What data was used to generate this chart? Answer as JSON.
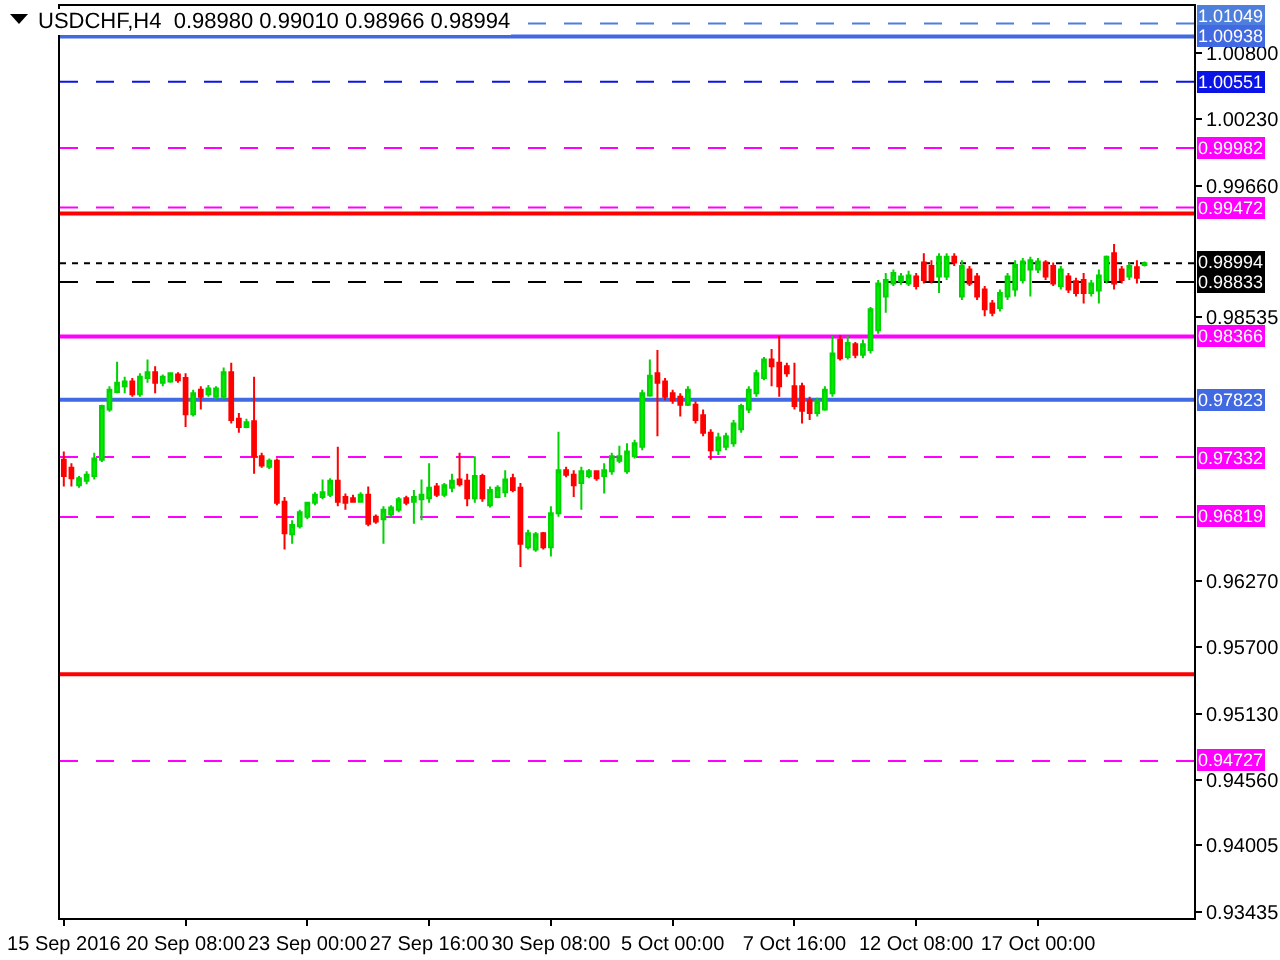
{
  "chart_data": {
    "type": "candlestick",
    "title": "USDCHF,H4  0.98980 0.99010 0.98966 0.98994",
    "categories": [
      "15 Sep 2016",
      null,
      null,
      null,
      null,
      null,
      null,
      null,
      null,
      null,
      null,
      null,
      null,
      null,
      null,
      null,
      "20 Sep 08:00",
      null,
      null,
      null,
      null,
      null,
      null,
      null,
      null,
      null,
      null,
      null,
      null,
      null,
      null,
      null,
      "23 Sep 00:00",
      null,
      null,
      null,
      null,
      null,
      null,
      null,
      null,
      null,
      null,
      null,
      null,
      null,
      null,
      null,
      "27 Sep 16:00",
      null,
      null,
      null,
      null,
      null,
      null,
      null,
      null,
      null,
      null,
      null,
      null,
      null,
      null,
      null,
      "30 Sep 08:00",
      null,
      null,
      null,
      null,
      null,
      null,
      null,
      null,
      null,
      null,
      null,
      null,
      null,
      null,
      null,
      "5 Oct 00:00",
      null,
      null,
      null,
      null,
      null,
      null,
      null,
      null,
      null,
      null,
      null,
      null,
      null,
      null,
      null,
      "7 Oct 16:00",
      null,
      null,
      null,
      null,
      null,
      null,
      null,
      null,
      null,
      null,
      null,
      null,
      null,
      null,
      null,
      "12 Oct 08:00",
      null,
      null,
      null,
      null,
      null,
      null,
      null,
      null,
      null,
      null,
      null,
      null,
      null,
      null,
      null,
      "17 Oct 00:00",
      null,
      null,
      null,
      null,
      null,
      null,
      null,
      null,
      null,
      null,
      null,
      null,
      null,
      null
    ],
    "ohlc": [
      [
        0.9731,
        0.9738,
        0.9708,
        0.9717
      ],
      [
        0.9724,
        0.9728,
        0.9708,
        0.9715
      ],
      [
        0.9709,
        0.9717,
        0.9707,
        0.9715
      ],
      [
        0.9713,
        0.9721,
        0.971,
        0.9718
      ],
      [
        0.9717,
        0.9737,
        0.9714,
        0.9732
      ],
      [
        0.9731,
        0.9778,
        0.9729,
        0.9777
      ],
      [
        0.9774,
        0.9794,
        0.9772,
        0.9791
      ],
      [
        0.9789,
        0.9815,
        0.9788,
        0.9797
      ],
      [
        0.9794,
        0.9802,
        0.9788,
        0.9798
      ],
      [
        0.9798,
        0.9801,
        0.9785,
        0.9787
      ],
      [
        0.9787,
        0.9805,
        0.9785,
        0.9802
      ],
      [
        0.9801,
        0.9817,
        0.9797,
        0.9806
      ],
      [
        0.9806,
        0.9811,
        0.9788,
        0.9797
      ],
      [
        0.9797,
        0.9804,
        0.9794,
        0.9802
      ],
      [
        0.9798,
        0.9806,
        0.9797,
        0.9805
      ],
      [
        0.9804,
        0.9806,
        0.9797,
        0.9799
      ],
      [
        0.9801,
        0.9805,
        0.9759,
        0.977
      ],
      [
        0.977,
        0.9791,
        0.9768,
        0.9788
      ],
      [
        0.9791,
        0.9794,
        0.9774,
        0.9785
      ],
      [
        0.9787,
        0.9795,
        0.9785,
        0.9792
      ],
      [
        0.9785,
        0.9794,
        0.9783,
        0.9792
      ],
      [
        0.9785,
        0.981,
        0.9783,
        0.9806
      ],
      [
        0.9806,
        0.9814,
        0.9762,
        0.9765
      ],
      [
        0.9766,
        0.9771,
        0.9754,
        0.9759
      ],
      [
        0.9759,
        0.9766,
        0.9758,
        0.9763
      ],
      [
        0.9764,
        0.9802,
        0.9719,
        0.9734
      ],
      [
        0.9734,
        0.9737,
        0.9724,
        0.9726
      ],
      [
        0.9725,
        0.9732,
        0.9723,
        0.973
      ],
      [
        0.973,
        0.9732,
        0.9692,
        0.9694
      ],
      [
        0.9695,
        0.9699,
        0.9654,
        0.9668
      ],
      [
        0.9667,
        0.9679,
        0.9659,
        0.9675
      ],
      [
        0.9674,
        0.9688,
        0.9672,
        0.9686
      ],
      [
        0.9682,
        0.9695,
        0.968,
        0.9694
      ],
      [
        0.9694,
        0.9703,
        0.9692,
        0.9701
      ],
      [
        0.9699,
        0.9714,
        0.9697,
        0.9703
      ],
      [
        0.9701,
        0.9715,
        0.9699,
        0.9713
      ],
      [
        0.9713,
        0.9742,
        0.9691,
        0.9695
      ],
      [
        0.9699,
        0.9702,
        0.9688,
        0.9694
      ],
      [
        0.9698,
        0.9701,
        0.9694,
        0.9695
      ],
      [
        0.9695,
        0.9703,
        0.9694,
        0.9701
      ],
      [
        0.9701,
        0.9708,
        0.9674,
        0.9676
      ],
      [
        0.9682,
        0.9684,
        0.9676,
        0.9678
      ],
      [
        0.968,
        0.9691,
        0.9659,
        0.9688
      ],
      [
        0.9684,
        0.9692,
        0.9682,
        0.969
      ],
      [
        0.9688,
        0.9699,
        0.9686,
        0.9697
      ],
      [
        0.9698,
        0.97,
        0.9692,
        0.9694
      ],
      [
        0.9695,
        0.9705,
        0.9676,
        0.9699
      ],
      [
        0.9697,
        0.9714,
        0.9679,
        0.9701
      ],
      [
        0.9698,
        0.9728,
        0.9694,
        0.9707
      ],
      [
        0.9708,
        0.9711,
        0.9699,
        0.9701
      ],
      [
        0.9701,
        0.9711,
        0.9699,
        0.9709
      ],
      [
        0.9707,
        0.9719,
        0.9703,
        0.9713
      ],
      [
        0.9714,
        0.9737,
        0.9708,
        0.971
      ],
      [
        0.9713,
        0.9719,
        0.9691,
        0.9698
      ],
      [
        0.9698,
        0.9734,
        0.9694,
        0.9717
      ],
      [
        0.9717,
        0.9719,
        0.9695,
        0.9698
      ],
      [
        0.9692,
        0.9708,
        0.969,
        0.9705
      ],
      [
        0.9699,
        0.9709,
        0.9698,
        0.9707
      ],
      [
        0.9703,
        0.9722,
        0.9699,
        0.9714
      ],
      [
        0.9715,
        0.9719,
        0.9703,
        0.9705
      ],
      [
        0.9707,
        0.9711,
        0.9639,
        0.9659
      ],
      [
        0.9656,
        0.9671,
        0.9654,
        0.9668
      ],
      [
        0.9654,
        0.9669,
        0.9652,
        0.9667
      ],
      [
        0.9668,
        0.9669,
        0.9654,
        0.9656
      ],
      [
        0.9656,
        0.9691,
        0.9648,
        0.9685
      ],
      [
        0.9685,
        0.9755,
        0.9682,
        0.9722
      ],
      [
        0.9722,
        0.9725,
        0.9716,
        0.9718
      ],
      [
        0.9718,
        0.9722,
        0.9699,
        0.9709
      ],
      [
        0.9711,
        0.9725,
        0.9688,
        0.9721
      ],
      [
        0.9717,
        0.9723,
        0.9715,
        0.9721
      ],
      [
        0.9721,
        0.9722,
        0.9713,
        0.9715
      ],
      [
        0.9717,
        0.9728,
        0.9702,
        0.9722
      ],
      [
        0.9721,
        0.9737,
        0.9718,
        0.9734
      ],
      [
        0.973,
        0.9743,
        0.9728,
        0.9734
      ],
      [
        0.9721,
        0.9745,
        0.9719,
        0.9738
      ],
      [
        0.9734,
        0.9748,
        0.9732,
        0.9745
      ],
      [
        0.9742,
        0.9791,
        0.9739,
        0.9788
      ],
      [
        0.9786,
        0.9817,
        0.9785,
        0.9803
      ],
      [
        0.9805,
        0.9825,
        0.9751,
        0.9797
      ],
      [
        0.9798,
        0.9801,
        0.9782,
        0.9785
      ],
      [
        0.9788,
        0.9791,
        0.9779,
        0.9782
      ],
      [
        0.9785,
        0.9788,
        0.9768,
        0.9778
      ],
      [
        0.9778,
        0.9794,
        0.9777,
        0.9791
      ],
      [
        0.9778,
        0.9781,
        0.9762,
        0.9765
      ],
      [
        0.9769,
        0.9774,
        0.9751,
        0.9754
      ],
      [
        0.9754,
        0.9757,
        0.9731,
        0.9739
      ],
      [
        0.9739,
        0.9754,
        0.9735,
        0.975
      ],
      [
        0.9742,
        0.9754,
        0.9739,
        0.9751
      ],
      [
        0.9745,
        0.9765,
        0.9742,
        0.9762
      ],
      [
        0.9757,
        0.9779,
        0.9754,
        0.9777
      ],
      [
        0.9774,
        0.9794,
        0.9771,
        0.9791
      ],
      [
        0.9788,
        0.9808,
        0.9785,
        0.9805
      ],
      [
        0.9801,
        0.9819,
        0.9799,
        0.9817
      ],
      [
        0.9817,
        0.9826,
        0.9794,
        0.9811
      ],
      [
        0.9814,
        0.9837,
        0.9785,
        0.9794
      ],
      [
        0.9811,
        0.9814,
        0.9802,
        0.9805
      ],
      [
        0.9794,
        0.9814,
        0.9774,
        0.9777
      ],
      [
        0.9794,
        0.9797,
        0.9762,
        0.9773
      ],
      [
        0.9782,
        0.9785,
        0.9765,
        0.9771
      ],
      [
        0.9771,
        0.9784,
        0.9768,
        0.9781
      ],
      [
        0.9774,
        0.9794,
        0.9773,
        0.9791
      ],
      [
        0.9788,
        0.9837,
        0.9785,
        0.9822
      ],
      [
        0.9834,
        0.9838,
        0.9816,
        0.9818
      ],
      [
        0.9819,
        0.9837,
        0.9817,
        0.9831
      ],
      [
        0.983,
        0.9832,
        0.9818,
        0.9821
      ],
      [
        0.9821,
        0.9834,
        0.9818,
        0.983
      ],
      [
        0.9825,
        0.9862,
        0.9822,
        0.986
      ],
      [
        0.9842,
        0.9885,
        0.9839,
        0.9882
      ],
      [
        0.9871,
        0.9891,
        0.9857,
        0.9885
      ],
      [
        0.9882,
        0.9894,
        0.988,
        0.9891
      ],
      [
        0.9884,
        0.9891,
        0.9881,
        0.9888
      ],
      [
        0.9882,
        0.9893,
        0.988,
        0.9889
      ],
      [
        0.9888,
        0.9891,
        0.9877,
        0.988
      ],
      [
        0.99,
        0.9908,
        0.9882,
        0.9885
      ],
      [
        0.9897,
        0.9902,
        0.9882,
        0.9885
      ],
      [
        0.9888,
        0.9908,
        0.9874,
        0.9905
      ],
      [
        0.9888,
        0.9908,
        0.9885,
        0.9905
      ],
      [
        0.9905,
        0.9908,
        0.9897,
        0.99
      ],
      [
        0.9871,
        0.9902,
        0.9868,
        0.9897
      ],
      [
        0.9894,
        0.9897,
        0.988,
        0.9882
      ],
      [
        0.9888,
        0.9891,
        0.9868,
        0.9871
      ],
      [
        0.9877,
        0.988,
        0.9854,
        0.986
      ],
      [
        0.9865,
        0.9868,
        0.9854,
        0.9857
      ],
      [
        0.9861,
        0.9877,
        0.9858,
        0.9874
      ],
      [
        0.9871,
        0.9891,
        0.9868,
        0.9888
      ],
      [
        0.9877,
        0.9902,
        0.9871,
        0.9898
      ],
      [
        0.9885,
        0.9904,
        0.9882,
        0.9901
      ],
      [
        0.9894,
        0.9905,
        0.9871,
        0.9902
      ],
      [
        0.9894,
        0.9904,
        0.9891,
        0.9901
      ],
      [
        0.99,
        0.9902,
        0.9885,
        0.9888
      ],
      [
        0.9897,
        0.99,
        0.988,
        0.9882
      ],
      [
        0.988,
        0.9897,
        0.9877,
        0.9894
      ],
      [
        0.9888,
        0.9891,
        0.9874,
        0.9877
      ],
      [
        0.9884,
        0.9887,
        0.9871,
        0.9874
      ],
      [
        0.9885,
        0.9891,
        0.9865,
        0.9874
      ],
      [
        0.9874,
        0.9885,
        0.9871,
        0.9882
      ],
      [
        0.9876,
        0.9894,
        0.9865,
        0.9889
      ],
      [
        0.9885,
        0.9906,
        0.9882,
        0.9905
      ],
      [
        0.9908,
        0.9916,
        0.9877,
        0.9882
      ],
      [
        0.9894,
        0.9897,
        0.9882,
        0.9885
      ],
      [
        0.9888,
        0.99,
        0.9885,
        0.9897
      ],
      [
        0.9896,
        0.9902,
        0.9882,
        0.9887
      ],
      [
        0.9898,
        0.9901,
        0.98966,
        0.98994
      ]
    ],
    "ylim": [
      0.9338,
      1.012
    ],
    "yticks": [
      {
        "value": 1.008,
        "label": "1.00800"
      },
      {
        "value": 1.0023,
        "label": "1.00230"
      },
      {
        "value": 0.9966,
        "label": "0.99660"
      },
      {
        "value": 0.98535,
        "label": "0.98535"
      },
      {
        "value": 0.9627,
        "label": "0.96270"
      },
      {
        "value": 0.957,
        "label": "0.95700"
      },
      {
        "value": 0.9513,
        "label": "0.95130"
      },
      {
        "value": 0.9456,
        "label": "0.94560"
      },
      {
        "value": 0.94005,
        "label": "0.94005"
      },
      {
        "value": 0.93435,
        "label": "0.93435"
      }
    ],
    "ref_lines": [
      {
        "axis": "y",
        "value": 1.01049,
        "label": "1.01049",
        "color": "#4f7fdc",
        "line_style": "dashed"
      },
      {
        "axis": "y",
        "value": 1.00938,
        "label": "1.00938",
        "color": "#4169e1",
        "line_style": "solid"
      },
      {
        "axis": "y",
        "value": 1.00551,
        "label": "1.00551",
        "color": "#0a14e6",
        "line_style": "dashed"
      },
      {
        "axis": "y",
        "value": 0.99982,
        "label": "0.99982",
        "color": "#ff00ff",
        "line_style": "dashed"
      },
      {
        "axis": "y",
        "value": 0.99472,
        "label": "0.99472",
        "color": "#ff00ff",
        "line_style": "dashed"
      },
      {
        "axis": "y",
        "value": 0.9942,
        "color": "#ff0000",
        "line_style": "solid"
      },
      {
        "axis": "y",
        "value": 0.98994,
        "label": "0.98994",
        "color": "#000000",
        "line_style": "dotted"
      },
      {
        "axis": "y",
        "value": 0.98833,
        "label": "0.98833",
        "color": "#000000",
        "line_style": "dashed"
      },
      {
        "axis": "y",
        "value": 0.98366,
        "label": "0.98366",
        "color": "#ff00ff",
        "line_style": "solid"
      },
      {
        "axis": "y",
        "value": 0.97823,
        "label": "0.97823",
        "color": "#4169e1",
        "line_style": "solid"
      },
      {
        "axis": "y",
        "value": 0.97332,
        "label": "0.97332",
        "color": "#ff00ff",
        "line_style": "dashed"
      },
      {
        "axis": "y",
        "value": 0.96819,
        "label": "0.96819",
        "color": "#ff00ff",
        "line_style": "dashed"
      },
      {
        "axis": "y",
        "value": 0.9547,
        "color": "#ff0000",
        "line_style": "solid"
      },
      {
        "axis": "y",
        "value": 0.94727,
        "label": "0.94727",
        "color": "#ff00ff",
        "line_style": "dashed"
      }
    ],
    "grid": false
  }
}
